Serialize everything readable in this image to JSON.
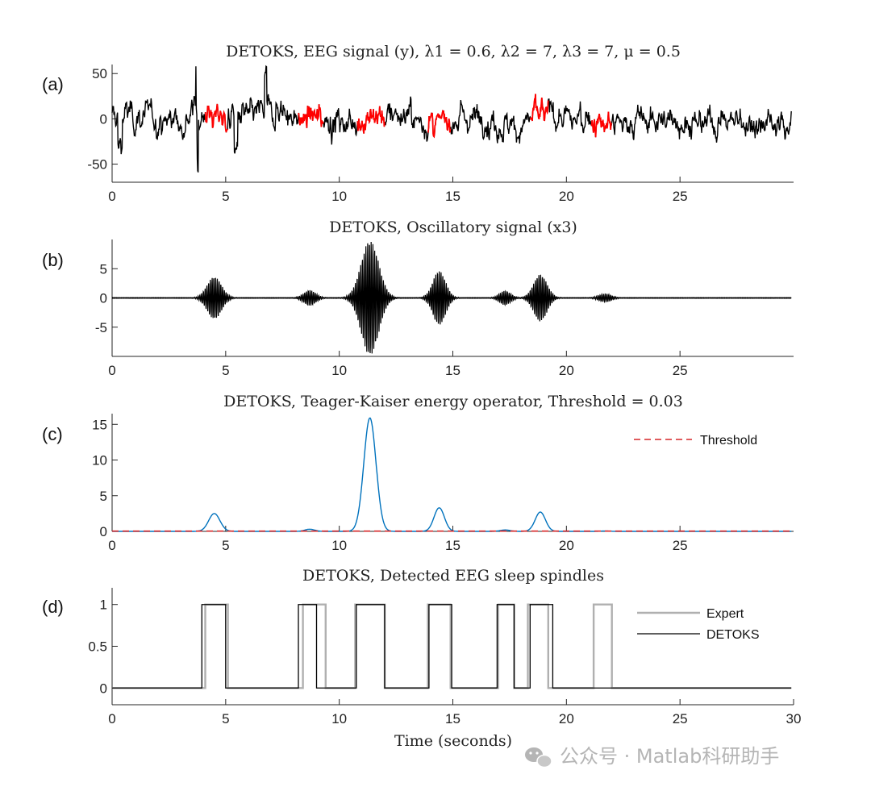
{
  "chart_data": [
    {
      "id": "a",
      "panel_label": "(a)",
      "type": "line",
      "title": "DETOKS, EEG signal (y), λ1 = 0.6, λ2 = 7, λ3 = 7, μ = 0.5",
      "xlim": [
        0,
        30
      ],
      "ylim": [
        -70,
        60
      ],
      "xticks": [
        0,
        5,
        10,
        15,
        20,
        25
      ],
      "yticks": [
        -50,
        0,
        50
      ],
      "series": [
        {
          "name": "EEG signal",
          "color": "#000000",
          "description": "broadband noise-like EEG, approx -55 to 55 µV"
        },
        {
          "name": "Detected spindle segments",
          "color": "#ff0000",
          "segments": [
            [
              4.1,
              5.1
            ],
            [
              8.2,
              9.3
            ],
            [
              10.8,
              12.0
            ],
            [
              13.9,
              14.9
            ],
            [
              18.4,
              19.2
            ],
            [
              21.1,
              22.0
            ]
          ]
        }
      ]
    },
    {
      "id": "b",
      "panel_label": "(b)",
      "type": "line",
      "title": "DETOKS, Oscillatory signal (x3)",
      "xlim": [
        0,
        30
      ],
      "ylim": [
        -10,
        10
      ],
      "xticks": [
        0,
        5,
        10,
        15,
        20,
        25
      ],
      "yticks": [
        -5,
        0,
        5
      ],
      "bursts": [
        {
          "center": 4.5,
          "amplitude": 3.6,
          "width": 0.45
        },
        {
          "center": 8.7,
          "amplitude": 1.3,
          "width": 0.38
        },
        {
          "center": 11.35,
          "amplitude": 9.8,
          "width": 0.55
        },
        {
          "center": 14.4,
          "amplitude": 4.6,
          "width": 0.4
        },
        {
          "center": 17.3,
          "amplitude": 1.2,
          "width": 0.35
        },
        {
          "center": 18.85,
          "amplitude": 4.0,
          "width": 0.42
        },
        {
          "center": 21.7,
          "amplitude": 0.7,
          "width": 0.4
        }
      ],
      "color": "#000000"
    },
    {
      "id": "c",
      "panel_label": "(c)",
      "type": "line",
      "title": "DETOKS, Teager-Kaiser energy operator, Threshold = 0.03",
      "xlim": [
        0,
        30
      ],
      "ylim": [
        0,
        16.5
      ],
      "xticks": [
        0,
        5,
        10,
        15,
        20,
        25
      ],
      "yticks": [
        0,
        5,
        10,
        15
      ],
      "peaks": [
        {
          "center": 4.5,
          "value": 2.5,
          "width": 0.35
        },
        {
          "center": 8.7,
          "value": 0.3,
          "width": 0.3
        },
        {
          "center": 11.35,
          "value": 15.9,
          "width": 0.38
        },
        {
          "center": 14.4,
          "value": 3.3,
          "width": 0.32
        },
        {
          "center": 17.3,
          "value": 0.2,
          "width": 0.3
        },
        {
          "center": 18.85,
          "value": 2.7,
          "width": 0.32
        },
        {
          "center": 21.7,
          "value": 0.05,
          "width": 0.3
        }
      ],
      "threshold": 0.03,
      "curve_color": "#0072bd",
      "threshold_color": "#d62728",
      "legend": [
        "Threshold"
      ]
    },
    {
      "id": "d",
      "panel_label": "(d)",
      "type": "line",
      "title": "DETOKS, Detected EEG sleep spindles",
      "xlabel": "Time (seconds)",
      "xlim": [
        0,
        30
      ],
      "ylim": [
        -0.2,
        1.2
      ],
      "xticks": [
        0,
        5,
        10,
        15,
        20,
        25,
        30
      ],
      "yticks": [
        0,
        0.5,
        1
      ],
      "series": [
        {
          "name": "Expert",
          "color": "#b0b0b0",
          "intervals": [
            [
              4.1,
              5.1
            ],
            [
              8.4,
              9.4
            ],
            [
              10.7,
              12.0
            ],
            [
              13.9,
              14.9
            ],
            [
              17.0,
              17.7
            ],
            [
              18.3,
              19.2
            ],
            [
              21.2,
              22.0
            ]
          ]
        },
        {
          "name": "DETOKS",
          "color": "#000000",
          "intervals": [
            [
              3.95,
              5.0
            ],
            [
              8.2,
              9.0
            ],
            [
              10.75,
              12.0
            ],
            [
              13.95,
              14.95
            ],
            [
              16.95,
              17.7
            ],
            [
              18.4,
              19.4
            ]
          ]
        }
      ],
      "legend": [
        "Expert",
        "DETOKS"
      ]
    }
  ],
  "watermark": {
    "text": "公众号 · Matlab科研助手",
    "icon": "wechat-icon"
  }
}
